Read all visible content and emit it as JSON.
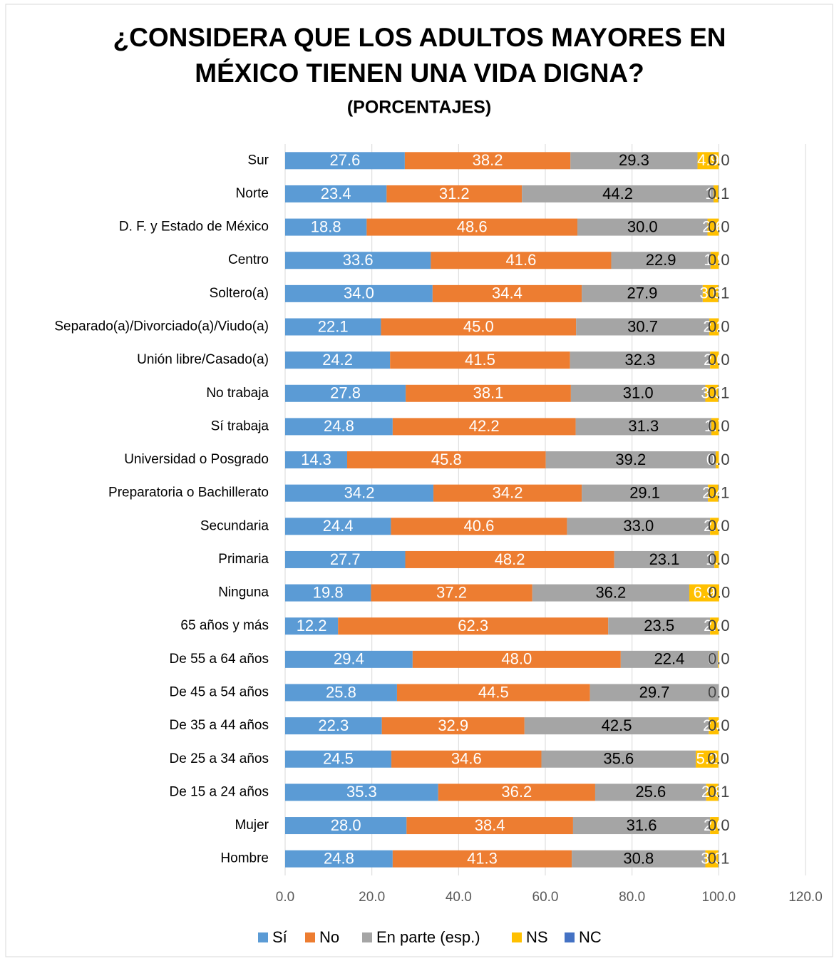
{
  "chart_data": {
    "type": "stacked-bar-horizontal",
    "title": "¿CONSIDERA QUE LOS ADULTOS MAYORES EN MÉXICO TIENEN UNA VIDA DIGNA?",
    "subtitle": "(PORCENTAJES)",
    "categories": [
      "Sur",
      "Norte",
      "D. F. y Estado de México",
      "Centro",
      "Soltero(a)",
      "Separado(a)/Divorciado(a)/Viudo(a)",
      "Unión libre/Casado(a)",
      "No trabaja",
      "Sí trabaja",
      "Universidad o Posgrado",
      "Preparatoria o Bachillerato",
      "Secundaria",
      "Primaria",
      "Ninguna",
      "65 años y más",
      "De 55 a 64 años",
      "De 45 a 54 años",
      "De 35 a 44 años",
      "De 25 a 34 años",
      "De 15 a 24 años",
      "Mujer",
      "Hombre"
    ],
    "series": [
      {
        "name": "Sí",
        "color": "#5b9bd5",
        "label_color": "#ffffff",
        "values": [
          27.6,
          23.4,
          18.8,
          33.6,
          34.0,
          22.1,
          24.2,
          27.8,
          24.8,
          14.3,
          34.2,
          24.4,
          27.7,
          19.8,
          12.2,
          29.4,
          25.8,
          22.3,
          24.5,
          35.3,
          28.0,
          24.8
        ],
        "value_labels": [
          "27.6",
          "23.4",
          "18.8",
          "33.6",
          "34.0",
          "22.1",
          "24.2",
          "27.8",
          "24.8",
          "14.3",
          "34.2",
          "24.4",
          "27.7",
          "19.8",
          "12.2",
          "29.4",
          "25.8",
          "22.3",
          "24.5",
          "35.3",
          "28.0",
          "24.8"
        ]
      },
      {
        "name": "No",
        "color": "#ed7d31",
        "label_color": "#ffffff",
        "values": [
          38.2,
          31.2,
          48.6,
          41.6,
          34.4,
          45.0,
          41.5,
          38.1,
          42.2,
          45.8,
          34.2,
          40.6,
          48.2,
          37.2,
          62.3,
          48.0,
          44.5,
          32.9,
          34.6,
          36.2,
          38.4,
          41.3
        ],
        "value_labels": [
          "38.2",
          "31.2",
          "48.6",
          "41.6",
          "34.4",
          "45.0",
          "41.5",
          "38.1",
          "42.2",
          "45.8",
          "34.2",
          "40.6",
          "48.2",
          "37.2",
          "62.3",
          "48.0",
          "44.5",
          "32.9",
          "34.6",
          "36.2",
          "38.4",
          "41.3"
        ]
      },
      {
        "name": "En parte (esp.)",
        "color": "#a5a5a5",
        "label_color": "#000000",
        "values": [
          29.3,
          44.2,
          30.0,
          22.9,
          27.9,
          30.7,
          32.3,
          31.0,
          31.3,
          39.2,
          29.1,
          33.0,
          23.1,
          36.2,
          23.5,
          22.4,
          29.7,
          42.5,
          35.6,
          25.6,
          31.6,
          30.8
        ],
        "value_labels": [
          "29.3",
          "44.2",
          "30.0",
          "22.9",
          "27.9",
          "30.7",
          "32.3",
          "31.0",
          "31.3",
          "39.2",
          "29.1",
          "33.0",
          "23.1",
          "36.2",
          "23.5",
          "22.4",
          "29.7",
          "42.5",
          "35.6",
          "25.6",
          "31.6",
          "30.8"
        ]
      },
      {
        "name": "NS",
        "color": "#ffc000",
        "label_color": "#ffffff",
        "values": [
          4.9,
          1.1,
          2.6,
          1.9,
          3.6,
          2.2,
          2.0,
          3.0,
          1.7,
          0.7,
          2.4,
          2.0,
          1.0,
          6.9,
          2.0,
          0.2,
          0.0,
          2.3,
          5.2,
          2.8,
          2.0,
          3.0
        ],
        "value_labels": [
          "4.9",
          "1.1",
          "2.6",
          "1.9",
          "3.6",
          "2.2",
          "2.0",
          "3.0",
          "1.7",
          "0.7",
          "2.4",
          "2.0",
          "1.0",
          "6.9",
          "2.0",
          "0.2",
          "0.0",
          "2.3",
          "5.2",
          "2.8",
          "2.0",
          "3.0"
        ]
      },
      {
        "name": "NC",
        "color": "#4472c4",
        "label_color": "#404040",
        "values": [
          0.0,
          0.1,
          0.0,
          0.0,
          0.1,
          0.0,
          0.0,
          0.1,
          0.0,
          0.0,
          0.1,
          0.0,
          0.0,
          0.0,
          0.0,
          0.0,
          0.0,
          0.0,
          0.0,
          0.1,
          0.0,
          0.1
        ],
        "value_labels": [
          "0.0",
          "0.1",
          "0.0",
          "0.0",
          "0.1",
          "0.0",
          "0.0",
          "0.1",
          "0.0",
          "0.0",
          "0.1",
          "0.0",
          "0.0",
          "0.0",
          "0.0",
          "0.0",
          "0.0",
          "0.0",
          "0.0",
          "0.1",
          "0.0",
          "0.1"
        ]
      }
    ],
    "xlim": [
      0,
      120
    ],
    "xticks": [
      {
        "value": 0,
        "label": "0.0"
      },
      {
        "value": 20,
        "label": "20.0"
      },
      {
        "value": 40,
        "label": "40.0"
      },
      {
        "value": 60,
        "label": "60.0"
      },
      {
        "value": 80,
        "label": "80.0"
      },
      {
        "value": 100,
        "label": "100.0"
      },
      {
        "value": 120,
        "label": "120.0"
      }
    ],
    "grid": true,
    "legend": "bottom"
  }
}
